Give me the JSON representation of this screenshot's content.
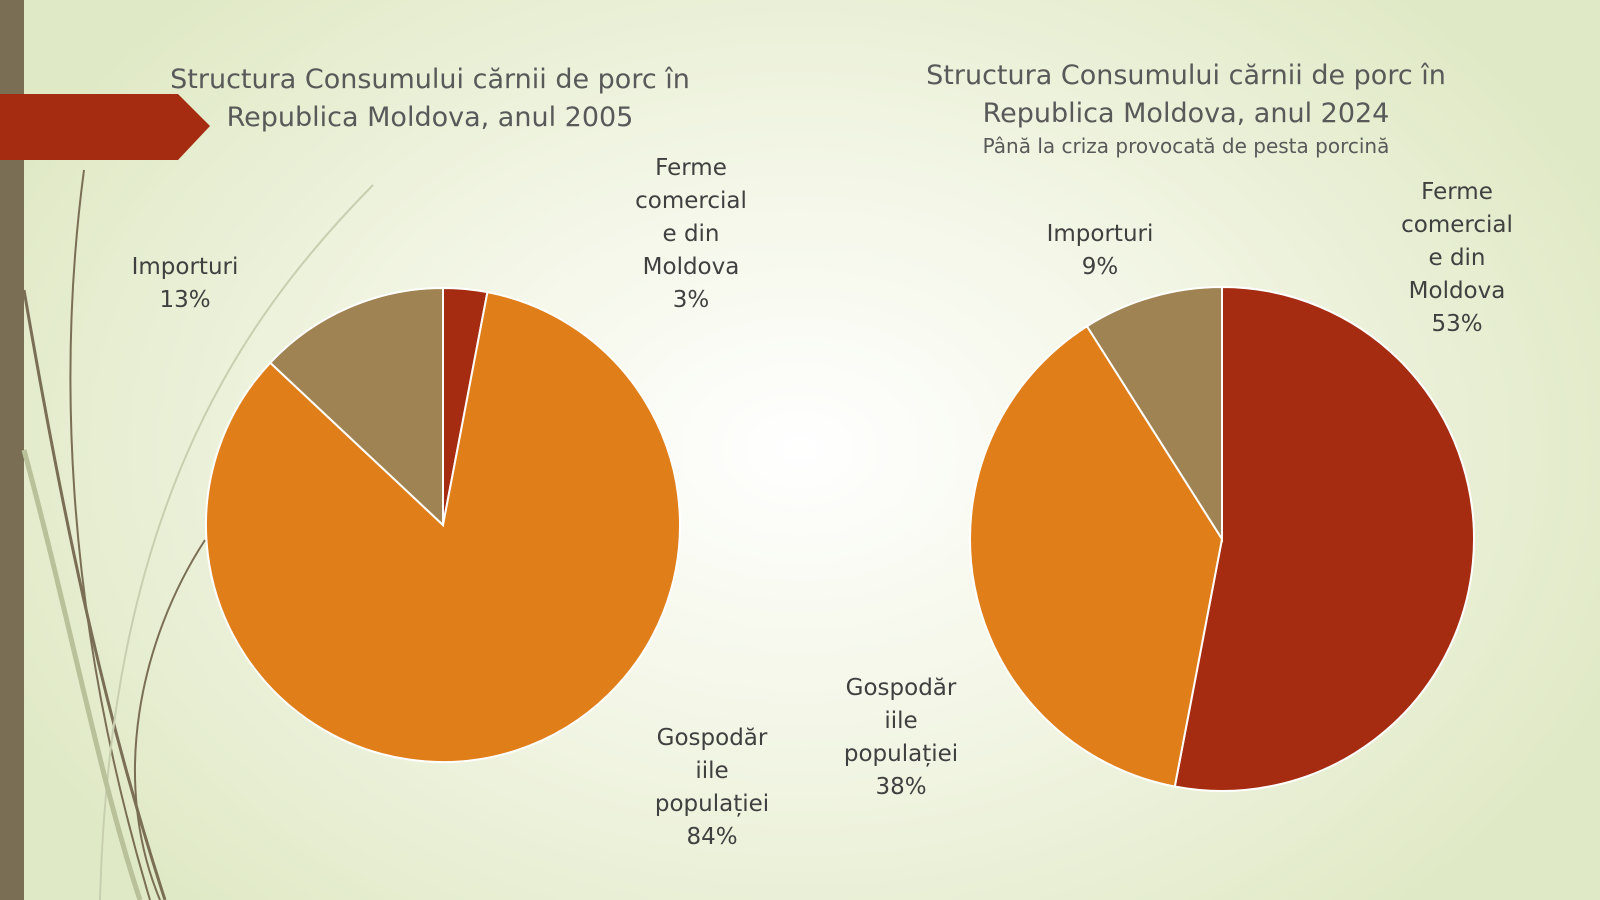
{
  "theme": {
    "sidebar_color": "#7a6e55",
    "arrow_color": "#a52c10",
    "stroke_colors": [
      "#7a6e55",
      "#c8cfb0",
      "#b9c19a"
    ]
  },
  "chart_data": [
    {
      "type": "pie",
      "title": "Structura Consumului cărnii de porc în Republica Moldova, anul 2005",
      "title_lines": [
        "Structura Consumului cărnii de porc în",
        "Republica Moldova, anul 2005"
      ],
      "subtitle": "",
      "slices": [
        {
          "label": "Ferme comerciale din Moldova",
          "label_lines": [
            "Ferme",
            "comercial",
            "e din",
            "Moldova"
          ],
          "value": 3,
          "display": "3%",
          "color": "#a52c10"
        },
        {
          "label": "Gospodăriile populației",
          "label_lines": [
            "Gospodăr",
            "iile",
            "populației"
          ],
          "value": 84,
          "display": "84%",
          "color": "#e07e1a"
        },
        {
          "label": "Importuri",
          "label_lines": [
            "Importuri"
          ],
          "value": 13,
          "display": "13%",
          "color": "#a08352"
        }
      ]
    },
    {
      "type": "pie",
      "title": "Structura Consumului cărnii de porc în Republica Moldova, anul 2024",
      "title_lines": [
        "Structura Consumului cărnii de porc în",
        "Republica Moldova, anul 2024"
      ],
      "subtitle": "Până la criza provocată de pesta porcină",
      "slices": [
        {
          "label": "Ferme comerciale din Moldova",
          "label_lines": [
            "Ferme",
            "comercial",
            "e din",
            "Moldova"
          ],
          "value": 53,
          "display": "53%",
          "color": "#a52c10"
        },
        {
          "label": "Gospodăriile populației",
          "label_lines": [
            "Gospodăr",
            "iile",
            "populației"
          ],
          "value": 38,
          "display": "38%",
          "color": "#e07e1a"
        },
        {
          "label": "Importuri",
          "label_lines": [
            "Importuri"
          ],
          "value": 9,
          "display": "9%",
          "color": "#a08352"
        }
      ]
    }
  ]
}
